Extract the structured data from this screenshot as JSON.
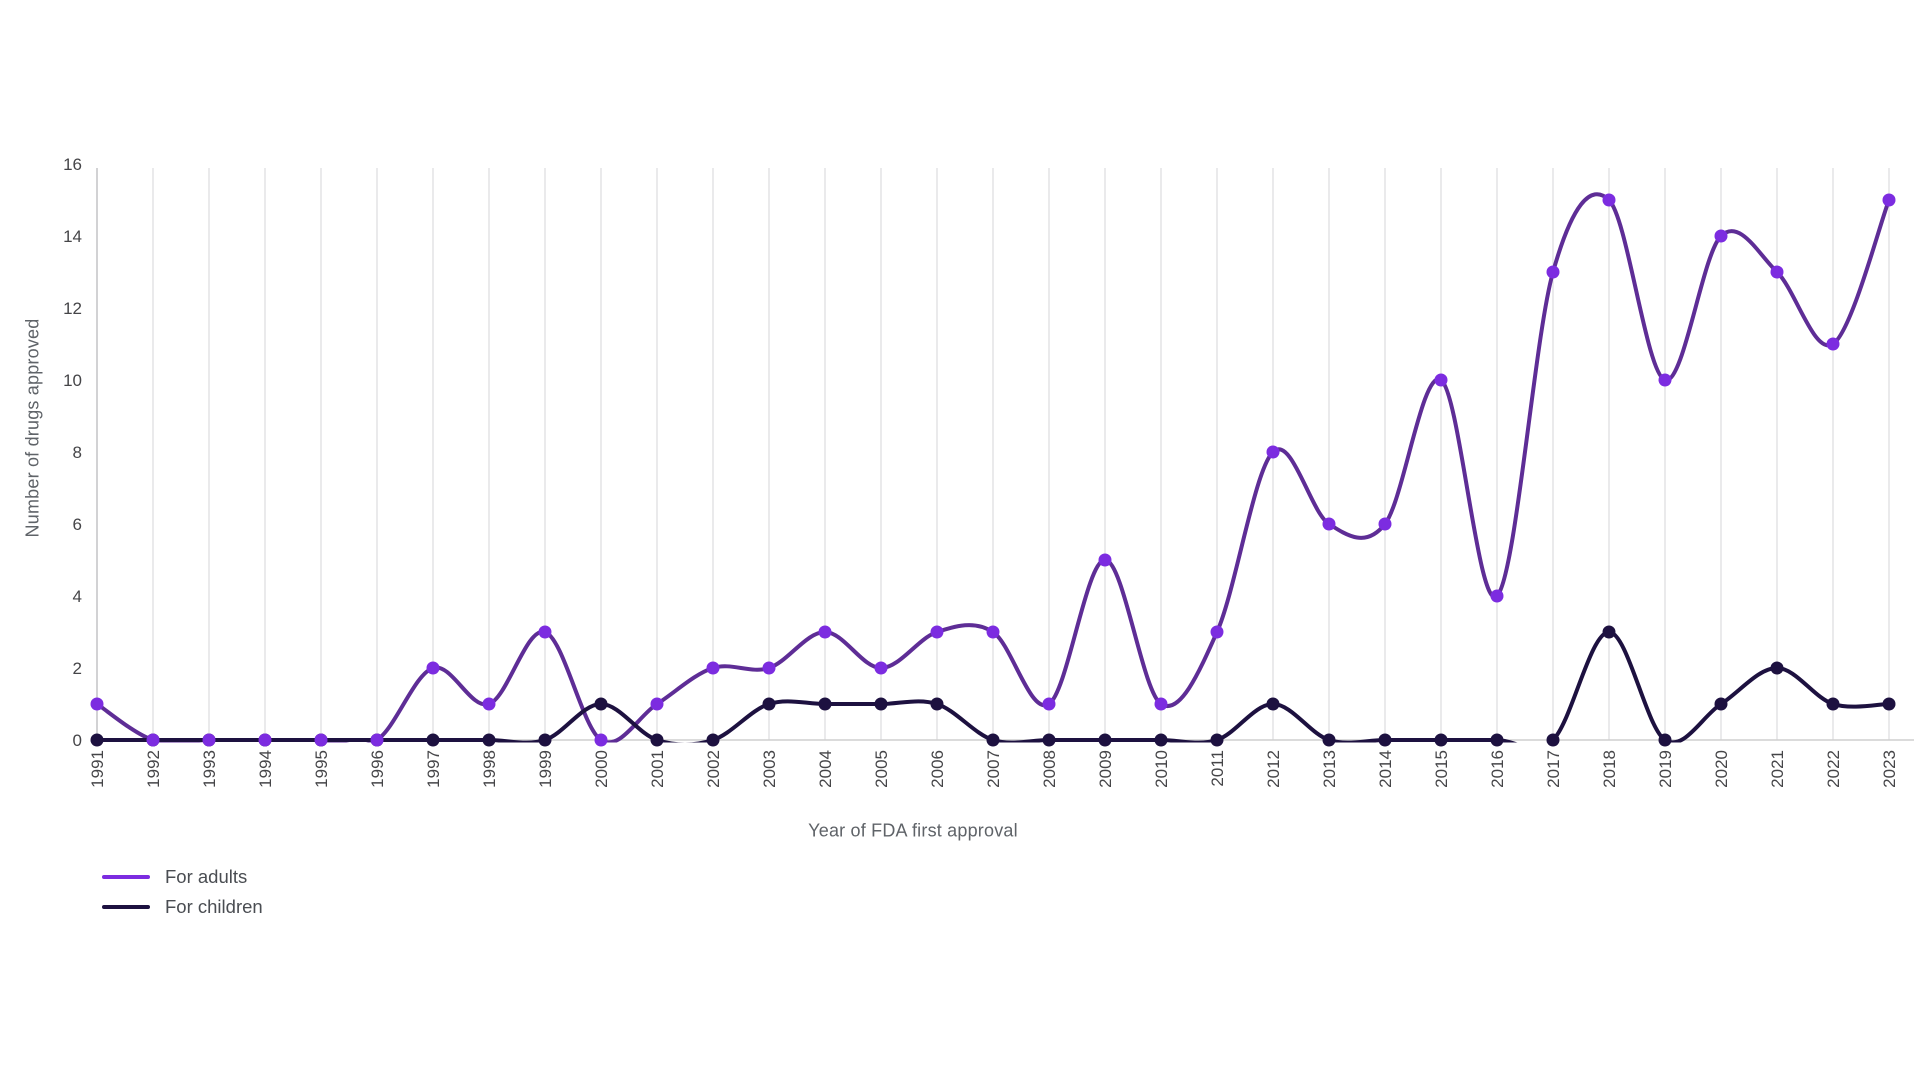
{
  "chart_data": {
    "type": "line",
    "title": "",
    "xlabel": "Year of FDA first approval",
    "ylabel": "Number of drugs approved",
    "x": [
      1991,
      1992,
      1993,
      1994,
      1995,
      1996,
      1997,
      1998,
      1999,
      2000,
      2001,
      2002,
      2003,
      2004,
      2005,
      2006,
      2007,
      2008,
      2009,
      2010,
      2011,
      2012,
      2013,
      2014,
      2015,
      2016,
      2017,
      2018,
      2019,
      2020,
      2021,
      2022,
      2023
    ],
    "series": [
      {
        "name": "For adults",
        "line_color": "#5e2d96",
        "marker_color": "#7c2ce0",
        "values": [
          1,
          0,
          0,
          0,
          0,
          0,
          2,
          1,
          3,
          0,
          1,
          2,
          2,
          3,
          2,
          3,
          3,
          1,
          5,
          1,
          3,
          8,
          6,
          6,
          10,
          4,
          13,
          15,
          10,
          14,
          13,
          11,
          15
        ]
      },
      {
        "name": "For children",
        "line_color": "#1d1140",
        "marker_color": "#1d1140",
        "values": [
          0,
          0,
          0,
          0,
          0,
          0,
          0,
          0,
          0,
          1,
          0,
          0,
          1,
          1,
          1,
          1,
          0,
          0,
          0,
          0,
          0,
          1,
          0,
          0,
          0,
          0,
          0,
          3,
          0,
          1,
          2,
          1,
          1
        ]
      }
    ],
    "ylim": [
      0,
      16
    ],
    "yticks": [
      0,
      2,
      4,
      6,
      8,
      10,
      12,
      14,
      16
    ],
    "grid": "vertical-line-per-year",
    "line_style": "smooth-spline",
    "markers": true,
    "legend_position": "bottom-left",
    "colors": {
      "gridline": "#dcdcde",
      "axis_line": "#cfcfcf",
      "tick_text": "#454548",
      "axis_title_text": "#5f6368"
    }
  }
}
